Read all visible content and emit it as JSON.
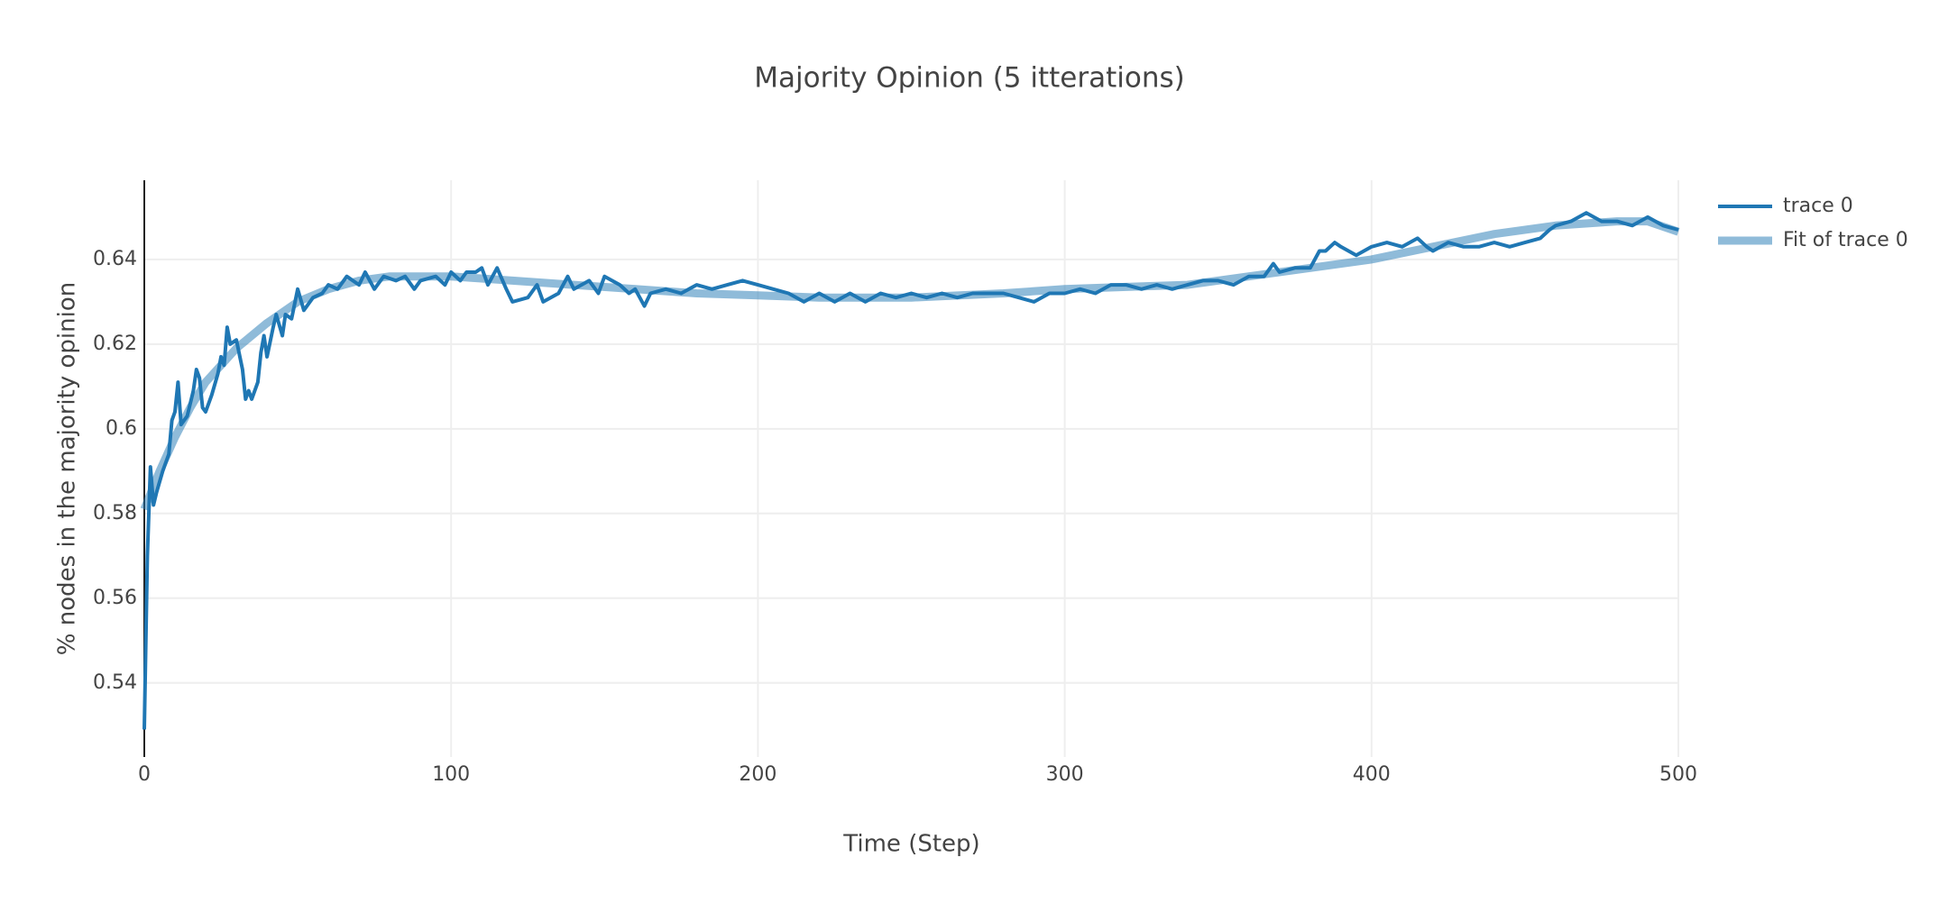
{
  "chart_data": {
    "type": "line",
    "title": "Majority Opinion (5 itterations)",
    "x_label": "Time (Step)",
    "y_label": "% nodes in the majority opinion",
    "xlim": [
      0,
      500
    ],
    "xticks": [
      0,
      100,
      200,
      300,
      400,
      500
    ],
    "ylim": [
      0.5225,
      0.6587
    ],
    "yticks": [
      0.54,
      0.56,
      0.58,
      0.6,
      0.62,
      0.64
    ],
    "grid": true,
    "legend": "outside-right",
    "series": [
      {
        "name": "trace 0",
        "color": "#1f77b4",
        "x": [
          0,
          1,
          2,
          3,
          4,
          6,
          8,
          9,
          10,
          11,
          12,
          14,
          16,
          17,
          18,
          19,
          20,
          22,
          24,
          25,
          26,
          27,
          28,
          30,
          32,
          33,
          34,
          35,
          37,
          38,
          39,
          40,
          42,
          43,
          45,
          46,
          48,
          50,
          52,
          55,
          58,
          60,
          63,
          66,
          70,
          72,
          75,
          78,
          82,
          85,
          88,
          90,
          95,
          98,
          100,
          103,
          105,
          108,
          110,
          112,
          115,
          118,
          120,
          125,
          128,
          130,
          135,
          138,
          140,
          145,
          148,
          150,
          155,
          158,
          160,
          163,
          165,
          170,
          175,
          180,
          185,
          190,
          195,
          200,
          205,
          210,
          215,
          220,
          225,
          230,
          235,
          240,
          245,
          250,
          255,
          260,
          265,
          270,
          275,
          280,
          285,
          290,
          295,
          300,
          305,
          310,
          315,
          320,
          325,
          330,
          335,
          340,
          345,
          350,
          355,
          360,
          365,
          368,
          370,
          375,
          380,
          383,
          385,
          388,
          390,
          395,
          400,
          405,
          410,
          415,
          418,
          420,
          425,
          430,
          435,
          440,
          445,
          450,
          455,
          458,
          460,
          465,
          470,
          475,
          480,
          485,
          490,
          495,
          500
        ],
        "values": [
          0.529,
          0.57,
          0.591,
          0.582,
          0.585,
          0.59,
          0.594,
          0.602,
          0.604,
          0.611,
          0.601,
          0.603,
          0.609,
          0.614,
          0.612,
          0.605,
          0.604,
          0.608,
          0.613,
          0.617,
          0.615,
          0.624,
          0.62,
          0.621,
          0.614,
          0.607,
          0.609,
          0.607,
          0.611,
          0.618,
          0.622,
          0.617,
          0.624,
          0.627,
          0.622,
          0.627,
          0.626,
          0.633,
          0.628,
          0.631,
          0.632,
          0.634,
          0.633,
          0.636,
          0.634,
          0.637,
          0.633,
          0.636,
          0.635,
          0.636,
          0.633,
          0.635,
          0.636,
          0.634,
          0.637,
          0.635,
          0.637,
          0.637,
          0.638,
          0.634,
          0.638,
          0.633,
          0.63,
          0.631,
          0.634,
          0.63,
          0.632,
          0.636,
          0.633,
          0.635,
          0.632,
          0.636,
          0.634,
          0.632,
          0.633,
          0.629,
          0.632,
          0.633,
          0.632,
          0.634,
          0.633,
          0.634,
          0.635,
          0.634,
          0.633,
          0.632,
          0.63,
          0.632,
          0.63,
          0.632,
          0.63,
          0.632,
          0.631,
          0.632,
          0.631,
          0.632,
          0.631,
          0.632,
          0.632,
          0.632,
          0.631,
          0.63,
          0.632,
          0.632,
          0.633,
          0.632,
          0.634,
          0.634,
          0.633,
          0.634,
          0.633,
          0.634,
          0.635,
          0.635,
          0.634,
          0.636,
          0.636,
          0.639,
          0.637,
          0.638,
          0.638,
          0.642,
          0.642,
          0.644,
          0.643,
          0.641,
          0.643,
          0.644,
          0.643,
          0.645,
          0.643,
          0.642,
          0.644,
          0.643,
          0.643,
          0.644,
          0.643,
          0.644,
          0.645,
          0.647,
          0.648,
          0.649,
          0.651,
          0.649,
          0.649,
          0.648,
          0.65,
          0.648,
          0.647
        ]
      },
      {
        "name": "Fit of trace 0",
        "color": "#1f77b4",
        "x": [
          0,
          5,
          10,
          15,
          20,
          30,
          40,
          50,
          60,
          70,
          80,
          90,
          100,
          120,
          140,
          160,
          180,
          200,
          220,
          250,
          280,
          300,
          320,
          340,
          360,
          380,
          400,
          420,
          440,
          460,
          480,
          490,
          500
        ],
        "values": [
          0.581,
          0.59,
          0.598,
          0.605,
          0.611,
          0.619,
          0.625,
          0.63,
          0.633,
          0.635,
          0.636,
          0.636,
          0.636,
          0.635,
          0.634,
          0.633,
          0.632,
          0.6315,
          0.631,
          0.631,
          0.632,
          0.633,
          0.6335,
          0.634,
          0.636,
          0.638,
          0.64,
          0.643,
          0.646,
          0.648,
          0.649,
          0.649,
          0.6465
        ]
      }
    ]
  }
}
